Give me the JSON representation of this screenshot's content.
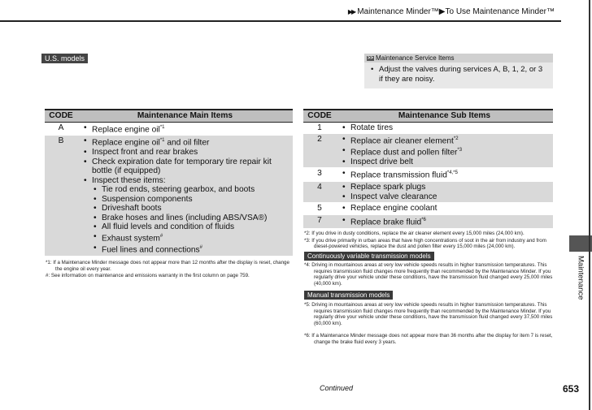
{
  "header": {
    "breadcrumb": "Maintenance Minder™▶To Use Maintenance Minder™"
  },
  "section_label": "U.S. models",
  "note": {
    "title": "Maintenance Service Items",
    "text": "Adjust the valves during services A, B, 1, 2, or 3 if they are noisy."
  },
  "main_table": {
    "headers": [
      "CODE",
      "Maintenance Main Items"
    ],
    "rows": [
      {
        "code": "A",
        "items": [
          {
            "t": "Replace engine oil",
            "sup": "*1"
          }
        ]
      },
      {
        "code": "B",
        "items": [
          {
            "t": "Replace engine oil",
            "sup": "*1",
            "after": " and oil filter"
          },
          {
            "t": "Inspect front and rear brakes"
          },
          {
            "t": "Check expiration date for temporary tire repair kit bottle (if equipped)"
          },
          {
            "t": "Inspect these items:"
          }
        ],
        "sub": [
          {
            "t": "Tie rod ends, steering gearbox, and boots"
          },
          {
            "t": "Suspension components"
          },
          {
            "t": "Driveshaft boots"
          },
          {
            "t": "Brake hoses and lines (including ABS/VSA®)"
          },
          {
            "t": "All fluid levels and condition of fluids"
          },
          {
            "t": "Exhaust system",
            "sup": "#"
          },
          {
            "t": "Fuel lines and connections",
            "sup": "#"
          }
        ]
      }
    ]
  },
  "sub_table": {
    "headers": [
      "CODE",
      "Maintenance Sub Items"
    ],
    "rows": [
      {
        "code": "1",
        "items": [
          {
            "t": "Rotate tires"
          }
        ]
      },
      {
        "code": "2",
        "items": [
          {
            "t": "Replace air cleaner element",
            "sup": "*2"
          },
          {
            "t": "Replace dust and pollen filter",
            "sup": "*3"
          },
          {
            "t": "Inspect drive belt"
          }
        ]
      },
      {
        "code": "3",
        "items": [
          {
            "t": "Replace transmission fluid",
            "sup": "*4,*5"
          }
        ]
      },
      {
        "code": "4",
        "items": [
          {
            "t": "Replace spark plugs"
          },
          {
            "t": "Inspect valve clearance"
          }
        ]
      },
      {
        "code": "5",
        "items": [
          {
            "t": "Replace engine coolant"
          }
        ]
      },
      {
        "code": "7",
        "items": [
          {
            "t": "Replace brake fluid",
            "sup": "*6"
          }
        ]
      }
    ]
  },
  "left_footnotes": [
    {
      "mark": "*1:",
      "text": "If a Maintenance Minder message does not appear more than 12 months after the display is reset, change the engine oil every year."
    },
    {
      "mark": "#:",
      "text": "See information on maintenance and emissions warranty in the first column on page 759."
    }
  ],
  "right_footnotes": {
    "general": [
      {
        "mark": "*2:",
        "text": "If you drive in dusty conditions, replace the air cleaner element every 15,000 miles (24,000 km)."
      },
      {
        "mark": "*3:",
        "text": "If you drive primarily in urban areas that have high concentrations of soot in the air from industry and from diesel-powered vehicles, replace the dust and pollen filter every 15,000 miles (24,000 km)."
      }
    ],
    "cvt_label": "Continuously variable transmission models",
    "cvt": {
      "mark": "*4:",
      "text": "Driving in mountainous areas at very low vehicle speeds results in higher transmission temperatures. This requires transmission fluid changes more frequently than recommended by the Maintenance Minder. If you regularly drive your vehicle under these conditions, have the transmission fluid changed every 25,000 miles (40,000 km)."
    },
    "mt_label": "Manual transmission models",
    "mt": {
      "mark": "*5:",
      "text": "Driving in mountainous areas at very low vehicle speeds results in higher transmission temperatures. This requires transmission fluid changes more frequently than recommended by the Maintenance Minder. If you regularly drive your vehicle under these conditions, have the transmission fluid changed every 37,500 miles (60,000 km)."
    },
    "last": {
      "mark": "*6:",
      "text": "If a Maintenance Minder message does not appear more than 36 months after the display for item 7 is reset, change the brake fluid every 3 years."
    }
  },
  "side_tab": "Maintenance",
  "continued": "Continued",
  "page_number": "653"
}
